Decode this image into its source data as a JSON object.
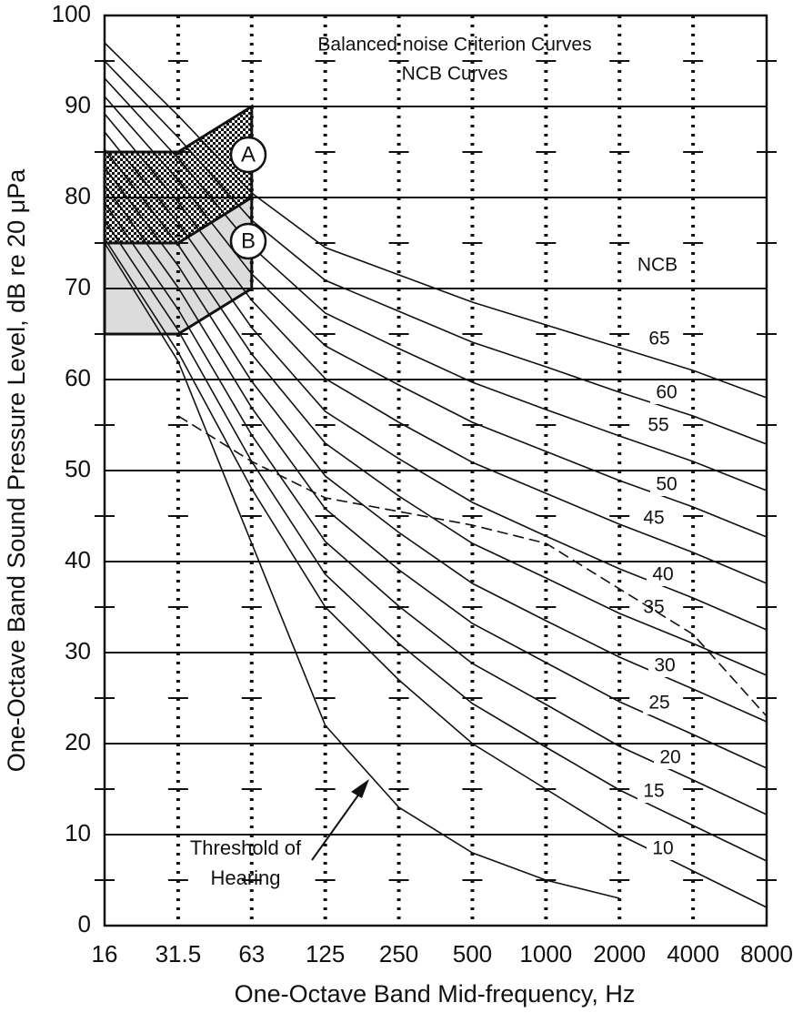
{
  "chart_data": {
    "type": "line",
    "title": "Balanced noise Criterion Curves",
    "subtitle": "NCB Curves",
    "x_label": "One-Octave Band Mid-frequency, Hz",
    "y_label": "One-Octave Band Sound Pressure Level, dB re 20 μPa",
    "categories": [
      "16",
      "31.5",
      "63",
      "125",
      "250",
      "500",
      "1000",
      "2000",
      "4000",
      "8000"
    ],
    "ylim": [
      0,
      100
    ],
    "yticks": [
      0,
      10,
      20,
      30,
      40,
      50,
      60,
      70,
      80,
      90,
      100
    ],
    "grid": true,
    "color": "#111111",
    "series_label_title": "NCB",
    "series": [
      {
        "name": "65",
        "values": [
          97,
          89,
          80.5,
          74.5,
          71.5,
          68.5,
          66,
          63.5,
          61,
          58
        ]
      },
      {
        "name": "60",
        "values": [
          95,
          86.6,
          77.5,
          70.9,
          67.5,
          64.1,
          61.4,
          58.6,
          56,
          52.9
        ]
      },
      {
        "name": "55",
        "values": [
          93.1,
          84.3,
          74.6,
          67.3,
          63.4,
          59.7,
          56.7,
          53.8,
          51,
          47.8
        ]
      },
      {
        "name": "50",
        "values": [
          91.1,
          81.9,
          71.6,
          63.7,
          59.4,
          55.3,
          52.1,
          48.9,
          46,
          42.7
        ]
      },
      {
        "name": "45",
        "values": [
          89.2,
          79.5,
          68.7,
          60.1,
          55.3,
          50.9,
          47.5,
          44.1,
          41,
          37.6
        ]
      },
      {
        "name": "40",
        "values": [
          87.2,
          77.2,
          65.7,
          56.5,
          51.3,
          46.5,
          42.8,
          39.2,
          36,
          32.5
        ]
      },
      {
        "name": "35",
        "values": [
          85.3,
          74.8,
          62.8,
          53,
          47.2,
          42,
          38.2,
          34.3,
          31,
          27.5
        ]
      },
      {
        "name": "30",
        "values": [
          83.3,
          72.5,
          59.8,
          49.4,
          43.2,
          37.6,
          33.5,
          29.5,
          26,
          22.4
        ]
      },
      {
        "name": "25",
        "values": [
          81.4,
          70.1,
          56.9,
          45.8,
          39.1,
          33.2,
          28.9,
          24.6,
          21,
          17.3
        ]
      },
      {
        "name": "20",
        "values": [
          79.4,
          67.7,
          53.9,
          42.2,
          35.1,
          28.8,
          24.3,
          19.7,
          16,
          12.2
        ]
      },
      {
        "name": "15",
        "values": [
          77.5,
          65.4,
          51,
          38.6,
          31,
          24.4,
          19.6,
          14.9,
          11,
          7.1
        ]
      },
      {
        "name": "10",
        "values": [
          75.5,
          63,
          48,
          35,
          27,
          20,
          15,
          10,
          6,
          2
        ]
      },
      {
        "values": [
          75,
          62,
          42,
          22,
          13,
          8,
          5,
          3,
          null,
          null
        ]
      },
      {
        "values": [
          null,
          56,
          51,
          47,
          45.5,
          44,
          42,
          37,
          32,
          23
        ],
        "dash": true
      }
    ],
    "annotations": [
      {
        "lines": [
          "Threshold of",
          "Hearing"
        ],
        "series": 12
      }
    ],
    "regions": [
      {
        "label": "A",
        "lower": [
          75,
          75,
          80
        ],
        "upper": [
          85,
          85,
          90
        ],
        "pattern": "checkered"
      },
      {
        "label": "B",
        "lower": [
          65,
          65,
          70
        ],
        "upper": [
          75,
          75,
          80
        ],
        "fill": "#dcdcdc"
      }
    ]
  }
}
